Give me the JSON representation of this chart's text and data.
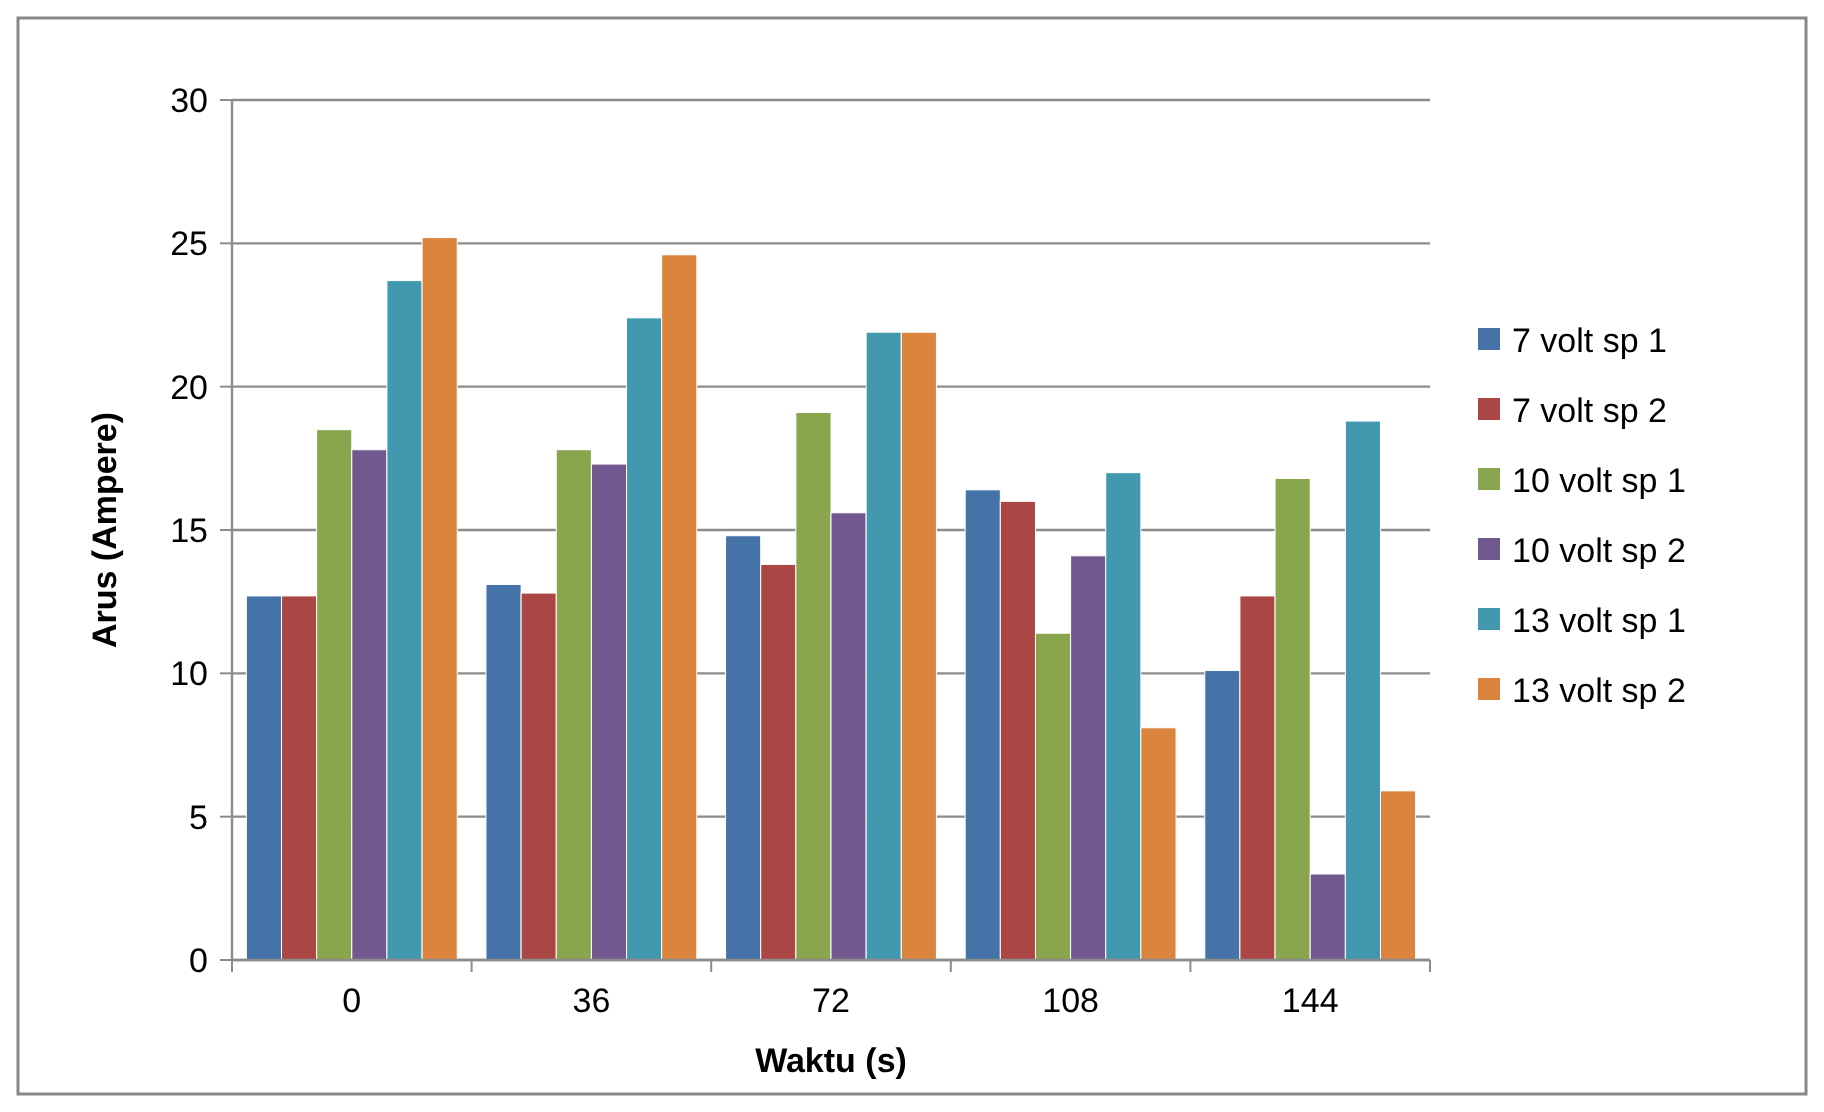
{
  "chart_data": {
    "type": "bar",
    "xlabel": "Waktu (s)",
    "ylabel": "Arus (Ampere)",
    "categories": [
      "0",
      "36",
      "72",
      "108",
      "144"
    ],
    "series": [
      {
        "name": "7 volt sp 1",
        "color": "#4572a7",
        "values": [
          12.7,
          13.1,
          14.8,
          16.4,
          10.1
        ]
      },
      {
        "name": "7 volt sp 2",
        "color": "#aa4643",
        "values": [
          12.7,
          12.8,
          13.8,
          16.0,
          12.7
        ]
      },
      {
        "name": "10 volt sp 1",
        "color": "#89a54e",
        "values": [
          18.5,
          17.8,
          19.1,
          11.4,
          16.8
        ]
      },
      {
        "name": "10 volt sp 2",
        "color": "#71588f",
        "values": [
          17.8,
          17.3,
          15.6,
          14.1,
          3.0
        ]
      },
      {
        "name": "13 volt sp 1",
        "color": "#4198af",
        "values": [
          23.7,
          22.4,
          21.9,
          17.0,
          18.8
        ]
      },
      {
        "name": "13 volt sp 2",
        "color": "#db843d",
        "values": [
          25.2,
          24.6,
          21.9,
          8.1,
          5.9
        ]
      }
    ],
    "ylim": [
      0,
      30
    ],
    "yticks": [
      0,
      5,
      10,
      15,
      20,
      25,
      30
    ],
    "grid": "y",
    "legend": "right"
  }
}
